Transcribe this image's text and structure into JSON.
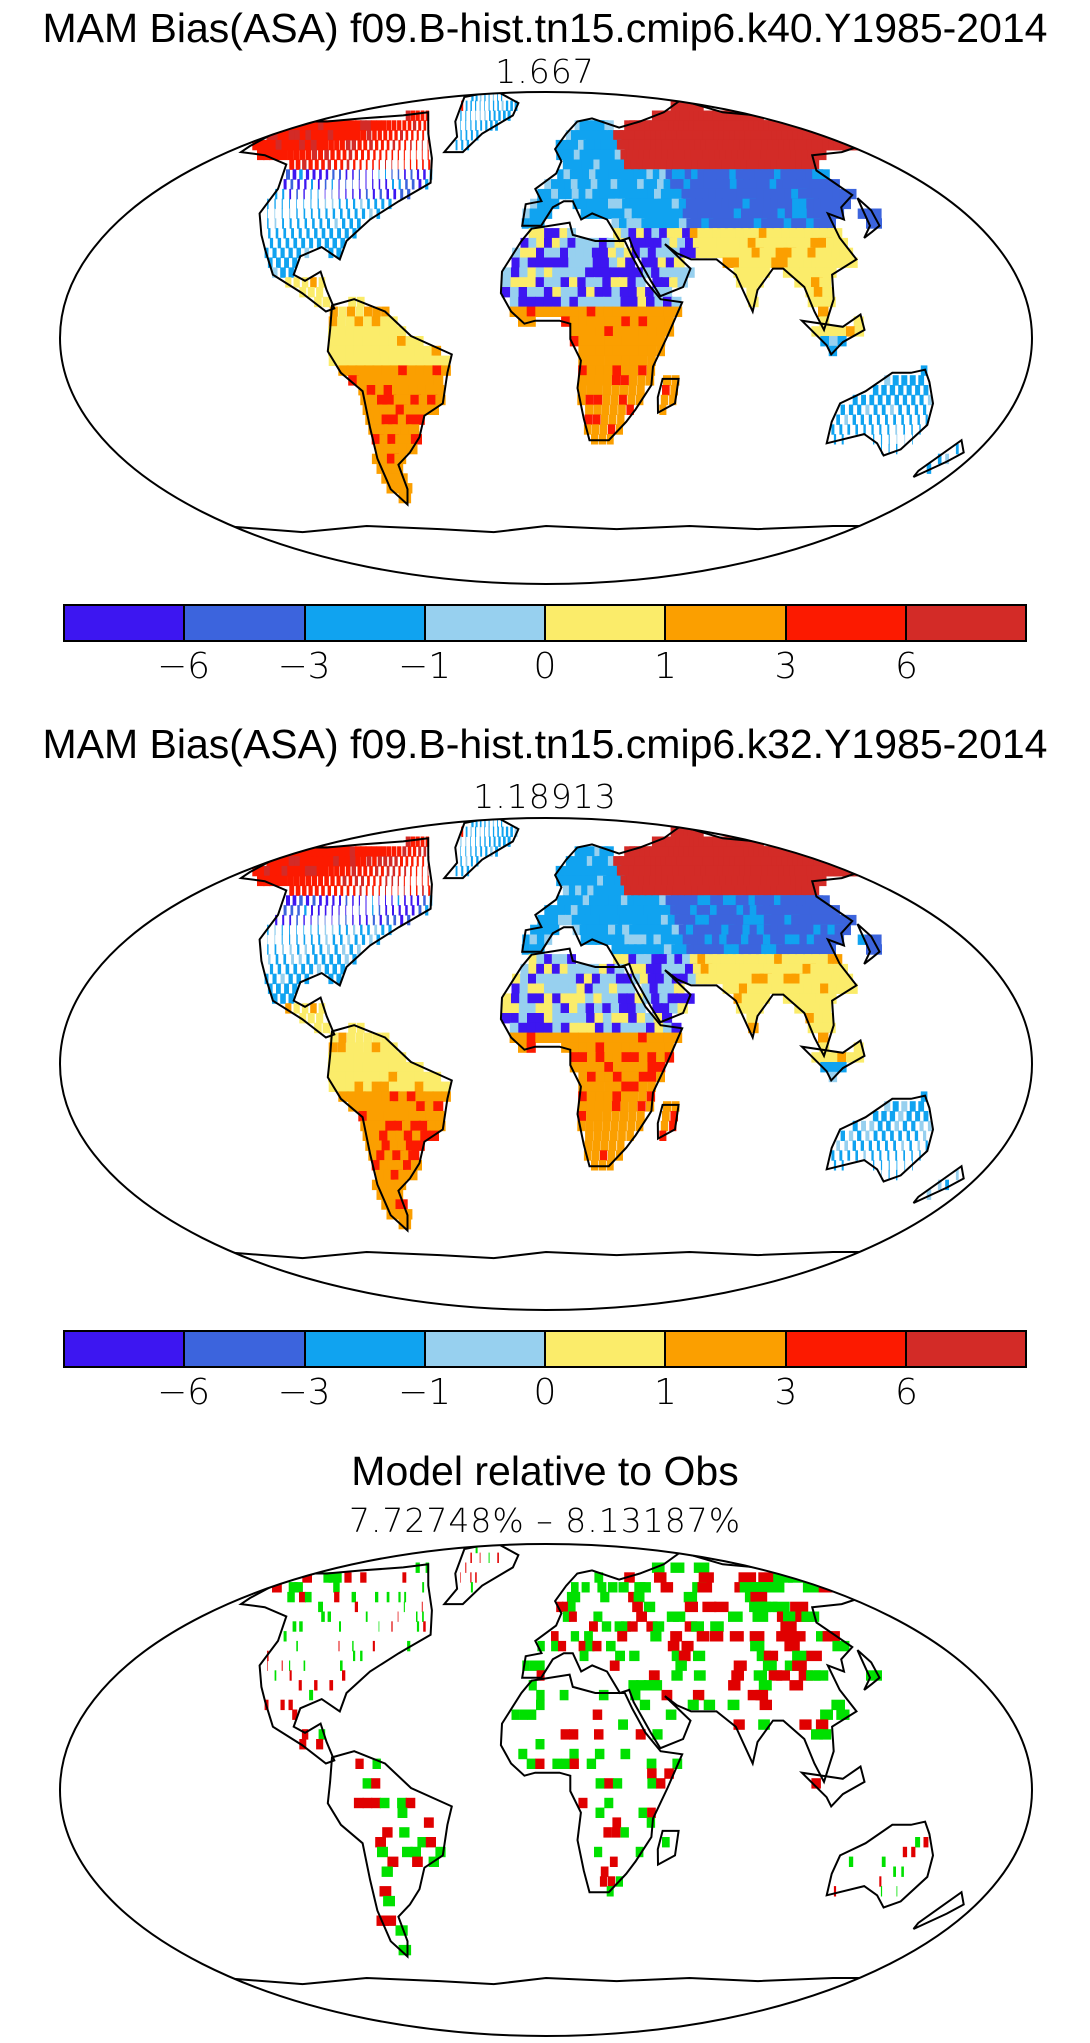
{
  "panels": [
    {
      "title": "MAM Bias(ASA) f09.B-hist.tn15.cmip6.k40.Y1985-2014",
      "value": "1.667",
      "variant": 0
    },
    {
      "title": "MAM Bias(ASA) f09.B-hist.tn15.cmip6.k32.Y1985-2014",
      "value": "1.18913",
      "variant": 1
    }
  ],
  "colorbar": {
    "colors": [
      "#3d16f1",
      "#3c64dd",
      "#10a3f0",
      "#97d0ef",
      "#fbec6a",
      "#fb9f00",
      "#fc1a00",
      "#d32b27"
    ],
    "labels": [
      "−6",
      "−3",
      "−1",
      "0",
      "1",
      "3",
      "6"
    ]
  },
  "comparison": {
    "title": "Model relative to Obs",
    "range": "7.72748% – 8.13187%",
    "colors": {
      "better": "#00e000",
      "worse": "#e00000"
    }
  }
}
